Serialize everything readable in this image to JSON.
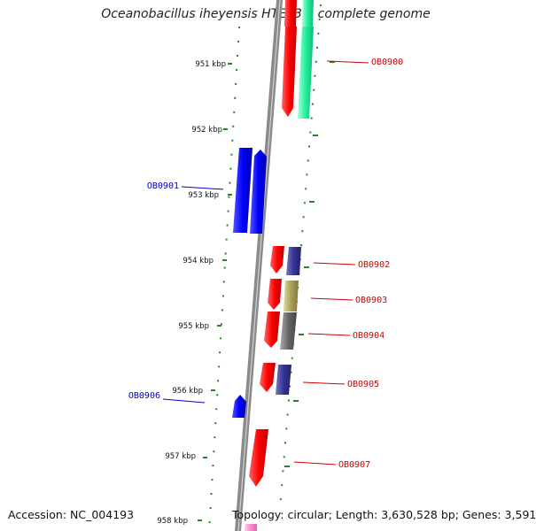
{
  "title": "Oceanobacillus iheyensis HTE831, complete genome",
  "footer": {
    "accession": "Accession: NC_004193",
    "summary": "Topology: circular; Length: 3,630,528 bp; Genes: 3,591"
  },
  "ticks": [
    "951 kbp",
    "952 kbp",
    "953 kbp",
    "954 kbp",
    "955 kbp",
    "956 kbp",
    "957 kbp",
    "958 kbp"
  ],
  "genes": [
    {
      "name": "OB0900",
      "color": "#cc0000"
    },
    {
      "name": "OB0901",
      "color": "#0000cc"
    },
    {
      "name": "OB0902",
      "color": "#cc0000"
    },
    {
      "name": "OB0903",
      "color": "#cc0000"
    },
    {
      "name": "OB0904",
      "color": "#cc0000"
    },
    {
      "name": "OB0905",
      "color": "#cc0000"
    },
    {
      "name": "OB0906",
      "color": "#0000cc"
    },
    {
      "name": "OB0907",
      "color": "#cc0000"
    }
  ],
  "colors": {
    "forward_gene": "#ff0000",
    "reverse_gene": "#0000ff",
    "cog_teal": "#22ee99",
    "cog_purple": "#333399",
    "cog_olive": "#aaa055",
    "cog_gray": "#666666",
    "cog_pink": "#ff88cc",
    "dotted_guides": "#228822",
    "backbone": "#8a8a8a"
  }
}
